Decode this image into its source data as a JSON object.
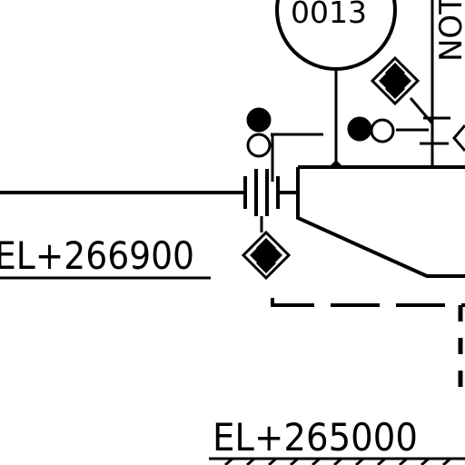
{
  "drawing": {
    "instrument_tag": "0013",
    "note_label": "NOT",
    "elevation_upper": "EL+266900",
    "elevation_lower": "EL+265000"
  },
  "colors": {
    "ink": "#000000",
    "paper": "#ffffff"
  }
}
